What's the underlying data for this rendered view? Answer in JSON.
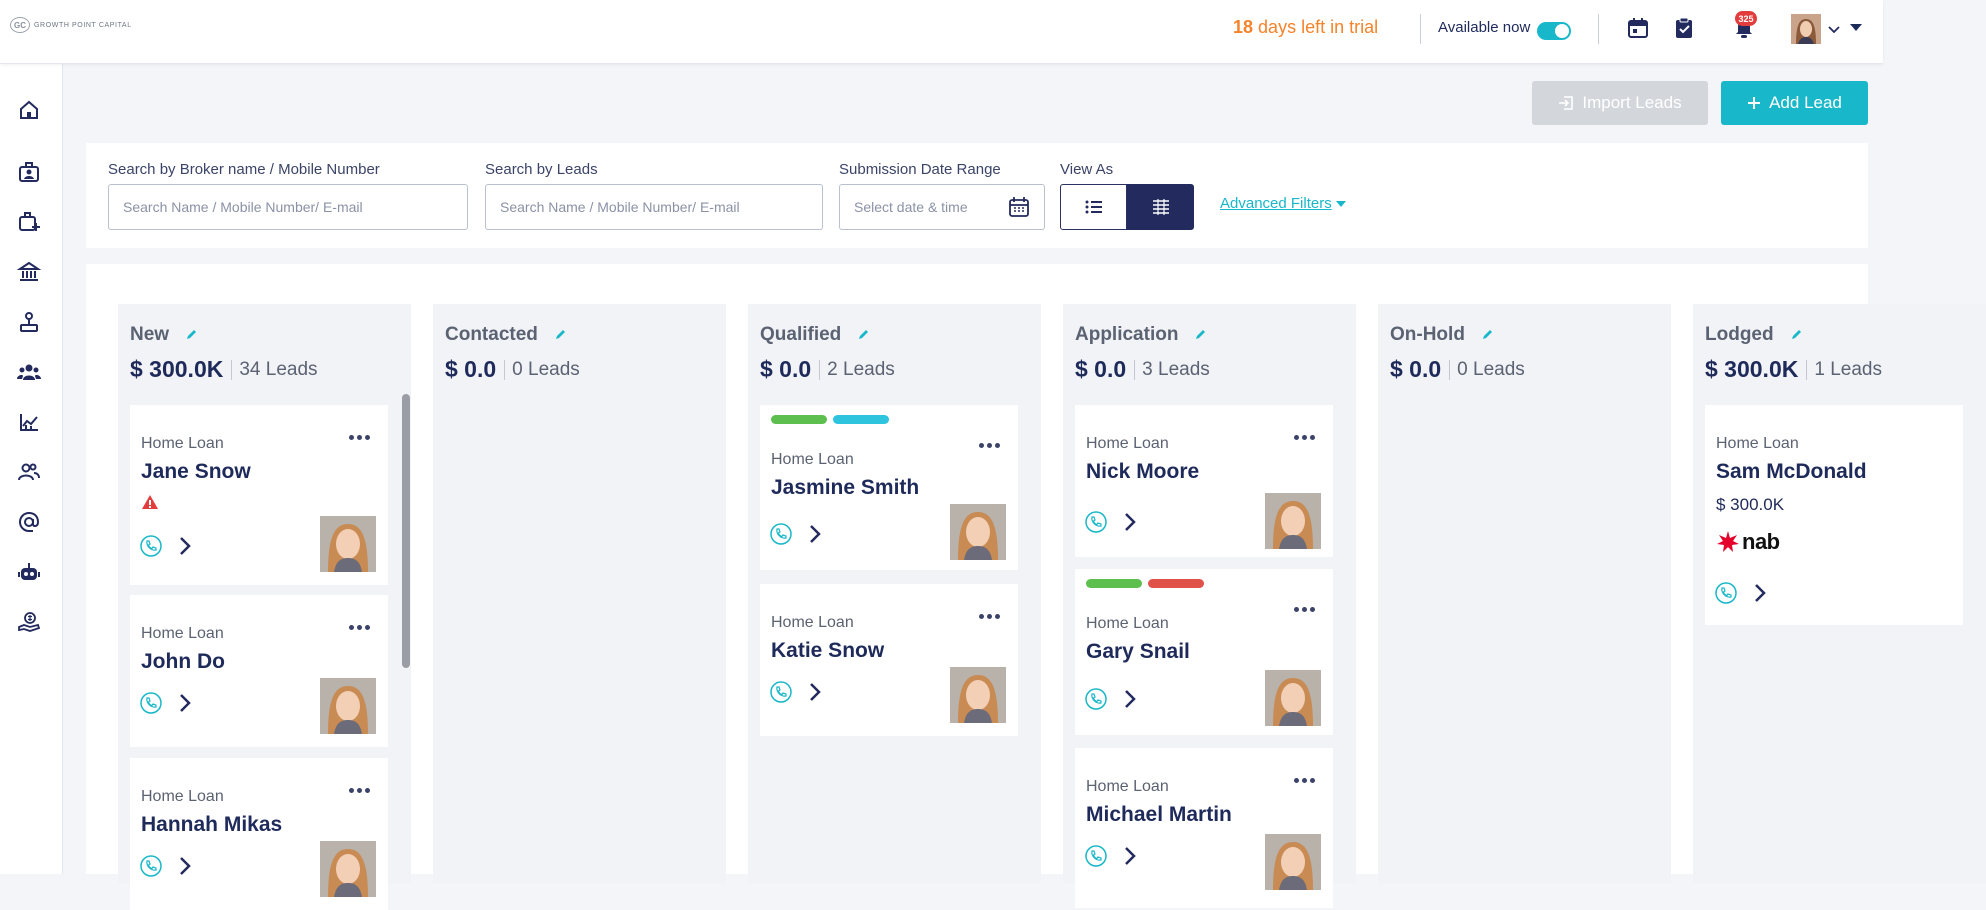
{
  "header": {
    "logo_mark": "GC",
    "logo_text": "GROWTH POINT CAPITAL",
    "trial_days": "18",
    "trial_suffix": "days left in trial",
    "available_label": "Available now",
    "available_on": true,
    "notifications_count": "325"
  },
  "actions": {
    "import_label": "Import Leads",
    "add_label": "Add Lead"
  },
  "filters": {
    "broker_label": "Search by Broker name / Mobile Number",
    "broker_placeholder": "Search Name / Mobile Number/ E-mail",
    "leads_label": "Search by Leads",
    "leads_placeholder": "Search Name / Mobile Number/ E-mail",
    "date_label": "Submission Date Range",
    "date_placeholder": "Select date & time",
    "view_label": "View As",
    "advanced_label": "Advanced Filters"
  },
  "sidebar": {
    "icons": [
      "home-icon",
      "briefcase-user-icon",
      "briefcase-add-icon",
      "bank-icon",
      "anchor-icon",
      "team-icon",
      "chart-icon",
      "users-icon",
      "at-icon",
      "robot-icon",
      "money-hand-icon"
    ]
  },
  "colors": {
    "accent": "#18b7c9",
    "navy": "#232a5e",
    "trial": "#f5832a",
    "tag_green": "#5dbf4e",
    "tag_cyan": "#2ec4dd",
    "tag_red": "#e05247",
    "nab_red": "#e4002b"
  },
  "columns": [
    {
      "title": "New",
      "amount": "$ 300.0K",
      "leads": "34 Leads",
      "cards": [
        {
          "type": "Home Loan",
          "name": "Jane Snow",
          "warning": true
        },
        {
          "type": "Home Loan",
          "name": "John Do"
        },
        {
          "type": "Home Loan",
          "name": "Hannah Mikas"
        }
      ]
    },
    {
      "title": "Contacted",
      "amount": "$ 0.0",
      "leads": "0 Leads",
      "cards": []
    },
    {
      "title": "Qualified",
      "amount": "$ 0.0",
      "leads": "2 Leads",
      "cards": [
        {
          "type": "Home Loan",
          "name": "Jasmine Smith",
          "tags": [
            "green",
            "cyan"
          ]
        },
        {
          "type": "Home Loan",
          "name": "Katie Snow"
        }
      ]
    },
    {
      "title": "Application",
      "amount": "$ 0.0",
      "leads": "3 Leads",
      "cards": [
        {
          "type": "Home Loan",
          "name": "Nick Moore"
        },
        {
          "type": "Home Loan",
          "name": "Gary Snail",
          "tags": [
            "green",
            "red"
          ]
        },
        {
          "type": "Home Loan",
          "name": "Michael Martin"
        }
      ]
    },
    {
      "title": "On-Hold",
      "amount": "$ 0.0",
      "leads": "0 Leads",
      "cards": []
    },
    {
      "title": "Lodged",
      "amount": "$ 300.0K",
      "leads": "1 Leads",
      "cards": [
        {
          "type": "Home Loan",
          "name": "Sam McDonald",
          "amount": "$ 300.0K",
          "lender": "nab"
        }
      ]
    }
  ]
}
